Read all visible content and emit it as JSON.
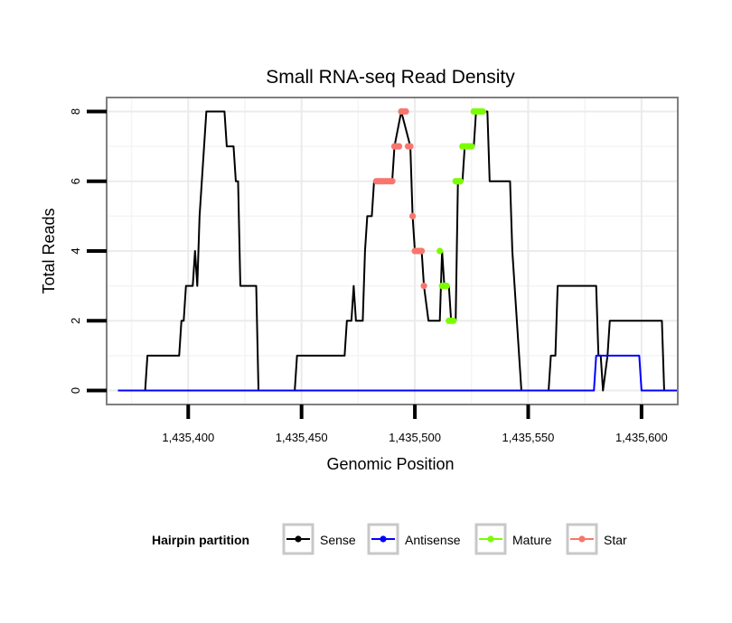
{
  "chart_data": {
    "type": "line",
    "title": "Small RNA-seq Read Density",
    "xlabel": "Genomic Position",
    "ylabel": "Total Reads",
    "xlim": [
      1435364,
      1435616
    ],
    "ylim": [
      -0.4,
      8.4
    ],
    "x_ticks": [
      1435400,
      1435450,
      1435500,
      1435550,
      1435600
    ],
    "x_tick_labels": [
      "1,435,400",
      "1,435,450",
      "1,435,500",
      "1,435,550",
      "1,435,600"
    ],
    "y_ticks": [
      0,
      2,
      4,
      6,
      8
    ],
    "y_tick_labels": [
      "0",
      "2",
      "4",
      "6",
      "8"
    ],
    "grid": true,
    "legend": {
      "title": "Hairpin partition",
      "position": "bottom",
      "entries": [
        "Sense",
        "Antisense",
        "Mature",
        "Star"
      ]
    },
    "series": [
      {
        "name": "Sense",
        "color": "#000000",
        "line": true,
        "points": [
          [
            1435369,
            0
          ],
          [
            1435381,
            0
          ],
          [
            1435382,
            1
          ],
          [
            1435396,
            1
          ],
          [
            1435397,
            2
          ],
          [
            1435398,
            2
          ],
          [
            1435399,
            3
          ],
          [
            1435402,
            3
          ],
          [
            1435403,
            4
          ],
          [
            1435404,
            3
          ],
          [
            1435405,
            5
          ],
          [
            1435408,
            8
          ],
          [
            1435416,
            8
          ],
          [
            1435417,
            7
          ],
          [
            1435420,
            7
          ],
          [
            1435421,
            6
          ],
          [
            1435422,
            6
          ],
          [
            1435423,
            3
          ],
          [
            1435430,
            3
          ],
          [
            1435431,
            0
          ],
          [
            1435447,
            0
          ],
          [
            1435448,
            1
          ],
          [
            1435469,
            1
          ],
          [
            1435470,
            2
          ],
          [
            1435472,
            2
          ],
          [
            1435473,
            3
          ],
          [
            1435474,
            2
          ],
          [
            1435477,
            2
          ],
          [
            1435478,
            4
          ],
          [
            1435479,
            5
          ],
          [
            1435481,
            5
          ],
          [
            1435482,
            6
          ],
          [
            1435490,
            6
          ],
          [
            1435491,
            7
          ],
          [
            1435494,
            8
          ],
          [
            1435498,
            7
          ],
          [
            1435499,
            5
          ],
          [
            1435500,
            4
          ],
          [
            1435503,
            4
          ],
          [
            1435504,
            3
          ],
          [
            1435506,
            2
          ],
          [
            1435511,
            2
          ],
          [
            1435512,
            4
          ],
          [
            1435513,
            3
          ],
          [
            1435515,
            3
          ],
          [
            1435516,
            2
          ],
          [
            1435518,
            2
          ],
          [
            1435519,
            6
          ],
          [
            1435521,
            6
          ],
          [
            1435522,
            7
          ],
          [
            1435526,
            7
          ],
          [
            1435527,
            8
          ],
          [
            1435532,
            8
          ],
          [
            1435533,
            6
          ],
          [
            1435542,
            6
          ],
          [
            1435543,
            4
          ],
          [
            1435544,
            3
          ],
          [
            1435546,
            1
          ],
          [
            1435547,
            0
          ],
          [
            1435559,
            0
          ],
          [
            1435560,
            1
          ],
          [
            1435562,
            1
          ],
          [
            1435563,
            3
          ],
          [
            1435580,
            3
          ],
          [
            1435581,
            1
          ],
          [
            1435582,
            1
          ],
          [
            1435583,
            0
          ],
          [
            1435585,
            1
          ],
          [
            1435586,
            2
          ],
          [
            1435609,
            2
          ],
          [
            1435610,
            0
          ],
          [
            1435616,
            0
          ]
        ]
      },
      {
        "name": "Antisense",
        "color": "#0000ff",
        "line": true,
        "points": [
          [
            1435369,
            0
          ],
          [
            1435579,
            0
          ],
          [
            1435580,
            1
          ],
          [
            1435599,
            1
          ],
          [
            1435600,
            0
          ],
          [
            1435616,
            0
          ]
        ]
      },
      {
        "name": "Mature",
        "color": "#7cfc00",
        "line": false,
        "points": [
          [
            1435511,
            4
          ],
          [
            1435512,
            3
          ],
          [
            1435513,
            3
          ],
          [
            1435514,
            3
          ],
          [
            1435515,
            2
          ],
          [
            1435516,
            2
          ],
          [
            1435517,
            2
          ],
          [
            1435518,
            6
          ],
          [
            1435519,
            6
          ],
          [
            1435520,
            6
          ],
          [
            1435521,
            7
          ],
          [
            1435522,
            7
          ],
          [
            1435523,
            7
          ],
          [
            1435524,
            7
          ],
          [
            1435525,
            7
          ],
          [
            1435526,
            8
          ],
          [
            1435527,
            8
          ],
          [
            1435528,
            8
          ],
          [
            1435529,
            8
          ],
          [
            1435530,
            8
          ]
        ]
      },
      {
        "name": "Star",
        "color": "#f8766d",
        "line": false,
        "points": [
          [
            1435483,
            6
          ],
          [
            1435484,
            6
          ],
          [
            1435485,
            6
          ],
          [
            1435486,
            6
          ],
          [
            1435487,
            6
          ],
          [
            1435488,
            6
          ],
          [
            1435489,
            6
          ],
          [
            1435490,
            6
          ],
          [
            1435491,
            7
          ],
          [
            1435492,
            7
          ],
          [
            1435493,
            7
          ],
          [
            1435494,
            8
          ],
          [
            1435495,
            8
          ],
          [
            1435496,
            8
          ],
          [
            1435497,
            7
          ],
          [
            1435498,
            7
          ],
          [
            1435499,
            5
          ],
          [
            1435500,
            4
          ],
          [
            1435501,
            4
          ],
          [
            1435502,
            4
          ],
          [
            1435503,
            4
          ],
          [
            1435504,
            3
          ]
        ]
      }
    ]
  }
}
